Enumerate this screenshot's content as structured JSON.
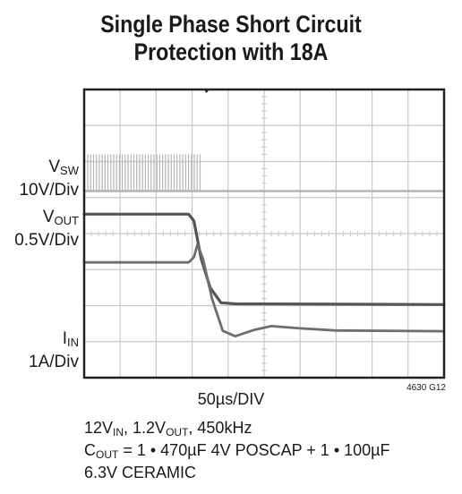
{
  "title": {
    "line1": "Single Phase Short Circuit",
    "line2": "Protection with 18A"
  },
  "channels": [
    {
      "main": "V",
      "sub": "SW",
      "scale": "10V/Div"
    },
    {
      "main": "V",
      "sub": "OUT",
      "scale": "0.5V/Div"
    },
    {
      "main": "I",
      "sub": "IN",
      "scale": "1A/Div"
    }
  ],
  "timebase": "50µs/DIV",
  "figure_id": "4630 G12",
  "conditions": {
    "line1": {
      "a": "12V",
      "a_sub": "IN",
      "b": ", 1.2V",
      "b_sub": "OUT",
      "c": ", 450kHz"
    },
    "line2": {
      "a": "C",
      "a_sub": "OUT",
      "b": " = 1 • 470µF 4V POSCAP + 1 • 100µF"
    },
    "line3": "6.3V CERAMIC"
  },
  "colors": {
    "grid": "#c8c8c8",
    "frame": "#222222",
    "vsw": "#b4b4b4",
    "vout": "#555555",
    "iin": "#6e6e6e"
  },
  "chart_data": {
    "type": "line",
    "x_units": "div",
    "y_units": "div",
    "xlim": [
      0,
      10
    ],
    "ylim": [
      0,
      8
    ],
    "grid": true,
    "series": [
      {
        "name": "VSW",
        "style": "switching-then-flat",
        "points": [
          [
            0,
            5.18
          ],
          [
            3.3,
            5.18
          ],
          [
            10,
            5.18
          ]
        ],
        "switching_end": 3.3,
        "switching_top": 6.2
      },
      {
        "name": "VOUT",
        "points": [
          [
            0,
            4.54
          ],
          [
            2.9,
            4.54
          ],
          [
            3.05,
            4.35
          ],
          [
            3.25,
            3.3
          ],
          [
            3.5,
            2.5
          ],
          [
            3.8,
            2.08
          ],
          [
            4.2,
            2.05
          ],
          [
            10,
            2.03
          ]
        ]
      },
      {
        "name": "IIN",
        "points": [
          [
            0,
            3.2
          ],
          [
            2.9,
            3.2
          ],
          [
            3.05,
            3.35
          ],
          [
            3.15,
            3.7
          ],
          [
            3.3,
            3.3
          ],
          [
            3.55,
            2.2
          ],
          [
            3.85,
            1.3
          ],
          [
            4.2,
            1.15
          ],
          [
            4.7,
            1.32
          ],
          [
            5.2,
            1.43
          ],
          [
            6.0,
            1.37
          ],
          [
            7.0,
            1.31
          ],
          [
            10,
            1.29
          ]
        ]
      }
    ]
  }
}
